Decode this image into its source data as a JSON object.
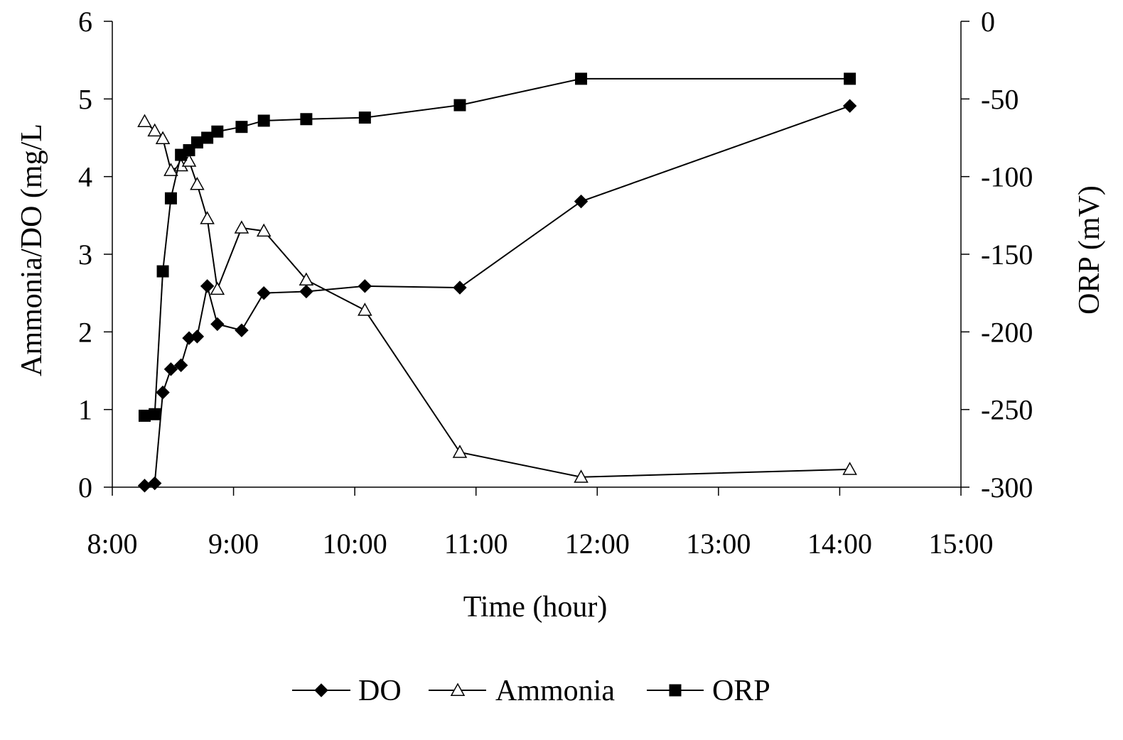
{
  "chart_data": {
    "type": "line",
    "xlabel": "Time (hour)",
    "ylabel": "Ammonia/DO (mg/L",
    "y2label": "ORP (mV)",
    "xlim": [
      "8:00",
      "15:00"
    ],
    "ylim": [
      0,
      6
    ],
    "y2lim": [
      -300,
      0
    ],
    "x_ticks": [
      "8:00",
      "9:00",
      "10:00",
      "11:00",
      "12:00",
      "13:00",
      "14:00",
      "15:00"
    ],
    "y_ticks": [
      "0",
      "1",
      "2",
      "3",
      "4",
      "5",
      "6"
    ],
    "y2_ticks": [
      "-300",
      "-250",
      "-200",
      "-150",
      "-100",
      "-50",
      "0"
    ],
    "grid": false,
    "legend_position": "bottom",
    "series": [
      {
        "name": "DO",
        "axis": "left",
        "marker": "diamond-filled",
        "points": [
          {
            "x": "8:16",
            "y": 0.02
          },
          {
            "x": "8:21",
            "y": 0.05
          },
          {
            "x": "8:25",
            "y": 1.22
          },
          {
            "x": "8:29",
            "y": 1.52
          },
          {
            "x": "8:34",
            "y": 1.57
          },
          {
            "x": "8:38",
            "y": 1.92
          },
          {
            "x": "8:42",
            "y": 1.94
          },
          {
            "x": "8:47",
            "y": 2.59
          },
          {
            "x": "8:52",
            "y": 2.1
          },
          {
            "x": "9:04",
            "y": 2.02
          },
          {
            "x": "9:15",
            "y": 2.5
          },
          {
            "x": "9:36",
            "y": 2.52
          },
          {
            "x": "10:05",
            "y": 2.59
          },
          {
            "x": "10:52",
            "y": 2.57
          },
          {
            "x": "11:52",
            "y": 3.68
          },
          {
            "x": "14:05",
            "y": 4.91
          }
        ]
      },
      {
        "name": "Ammonia",
        "axis": "left",
        "marker": "triangle-open",
        "points": [
          {
            "x": "8:16",
            "y": 4.71
          },
          {
            "x": "8:21",
            "y": 4.59
          },
          {
            "x": "8:25",
            "y": 4.49
          },
          {
            "x": "8:29",
            "y": 4.08
          },
          {
            "x": "8:34",
            "y": 4.14
          },
          {
            "x": "8:38",
            "y": 4.2
          },
          {
            "x": "8:42",
            "y": 3.9
          },
          {
            "x": "8:47",
            "y": 3.46
          },
          {
            "x": "8:52",
            "y": 2.55
          },
          {
            "x": "9:04",
            "y": 3.34
          },
          {
            "x": "9:15",
            "y": 3.3
          },
          {
            "x": "9:36",
            "y": 2.67
          },
          {
            "x": "10:05",
            "y": 2.28
          },
          {
            "x": "10:52",
            "y": 0.45
          },
          {
            "x": "11:52",
            "y": 0.13
          },
          {
            "x": "14:05",
            "y": 0.23
          }
        ]
      },
      {
        "name": "ORP",
        "axis": "right",
        "marker": "square-filled",
        "points": [
          {
            "x": "8:16",
            "y": -254
          },
          {
            "x": "8:21",
            "y": -253
          },
          {
            "x": "8:25",
            "y": -161
          },
          {
            "x": "8:29",
            "y": -114
          },
          {
            "x": "8:34",
            "y": -86
          },
          {
            "x": "8:38",
            "y": -83
          },
          {
            "x": "8:42",
            "y": -78
          },
          {
            "x": "8:47",
            "y": -75
          },
          {
            "x": "8:52",
            "y": -71
          },
          {
            "x": "9:04",
            "y": -68
          },
          {
            "x": "9:15",
            "y": -64
          },
          {
            "x": "9:36",
            "y": -63
          },
          {
            "x": "10:05",
            "y": -62
          },
          {
            "x": "10:52",
            "y": -54
          },
          {
            "x": "11:52",
            "y": -37
          },
          {
            "x": "14:05",
            "y": -37
          }
        ]
      }
    ]
  }
}
